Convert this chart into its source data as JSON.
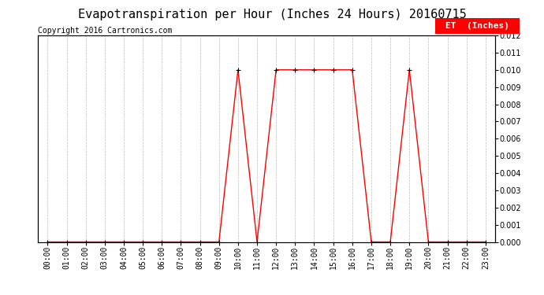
{
  "title": "Evapotranspiration per Hour (Inches 24 Hours) 20160715",
  "copyright_text": "Copyright 2016 Cartronics.com",
  "legend_label": "ET  (Inches)",
  "legend_bg": "#ff0000",
  "legend_text_color": "#ffffff",
  "line_color": "#ff0000",
  "marker_color": "#000000",
  "background_color": "#ffffff",
  "grid_color": "#bbbbbb",
  "hours": [
    0,
    1,
    2,
    3,
    4,
    5,
    6,
    7,
    8,
    9,
    10,
    11,
    12,
    13,
    14,
    15,
    16,
    17,
    18,
    19,
    20,
    21,
    22,
    23
  ],
  "values": [
    0.0,
    0.0,
    0.0,
    0.0,
    0.0,
    0.0,
    0.0,
    0.0,
    0.0,
    0.0,
    0.01,
    0.0,
    0.01,
    0.01,
    0.01,
    0.01,
    0.01,
    0.0,
    0.0,
    0.01,
    0.0,
    0.0,
    0.0,
    0.0
  ],
  "ylim": [
    0.0,
    0.012
  ],
  "yticks": [
    0.0,
    0.001,
    0.002,
    0.003,
    0.004,
    0.005,
    0.006,
    0.007,
    0.008,
    0.009,
    0.01,
    0.011,
    0.012
  ],
  "title_fontsize": 11,
  "copyright_fontsize": 7,
  "tick_fontsize": 7,
  "legend_fontsize": 8
}
